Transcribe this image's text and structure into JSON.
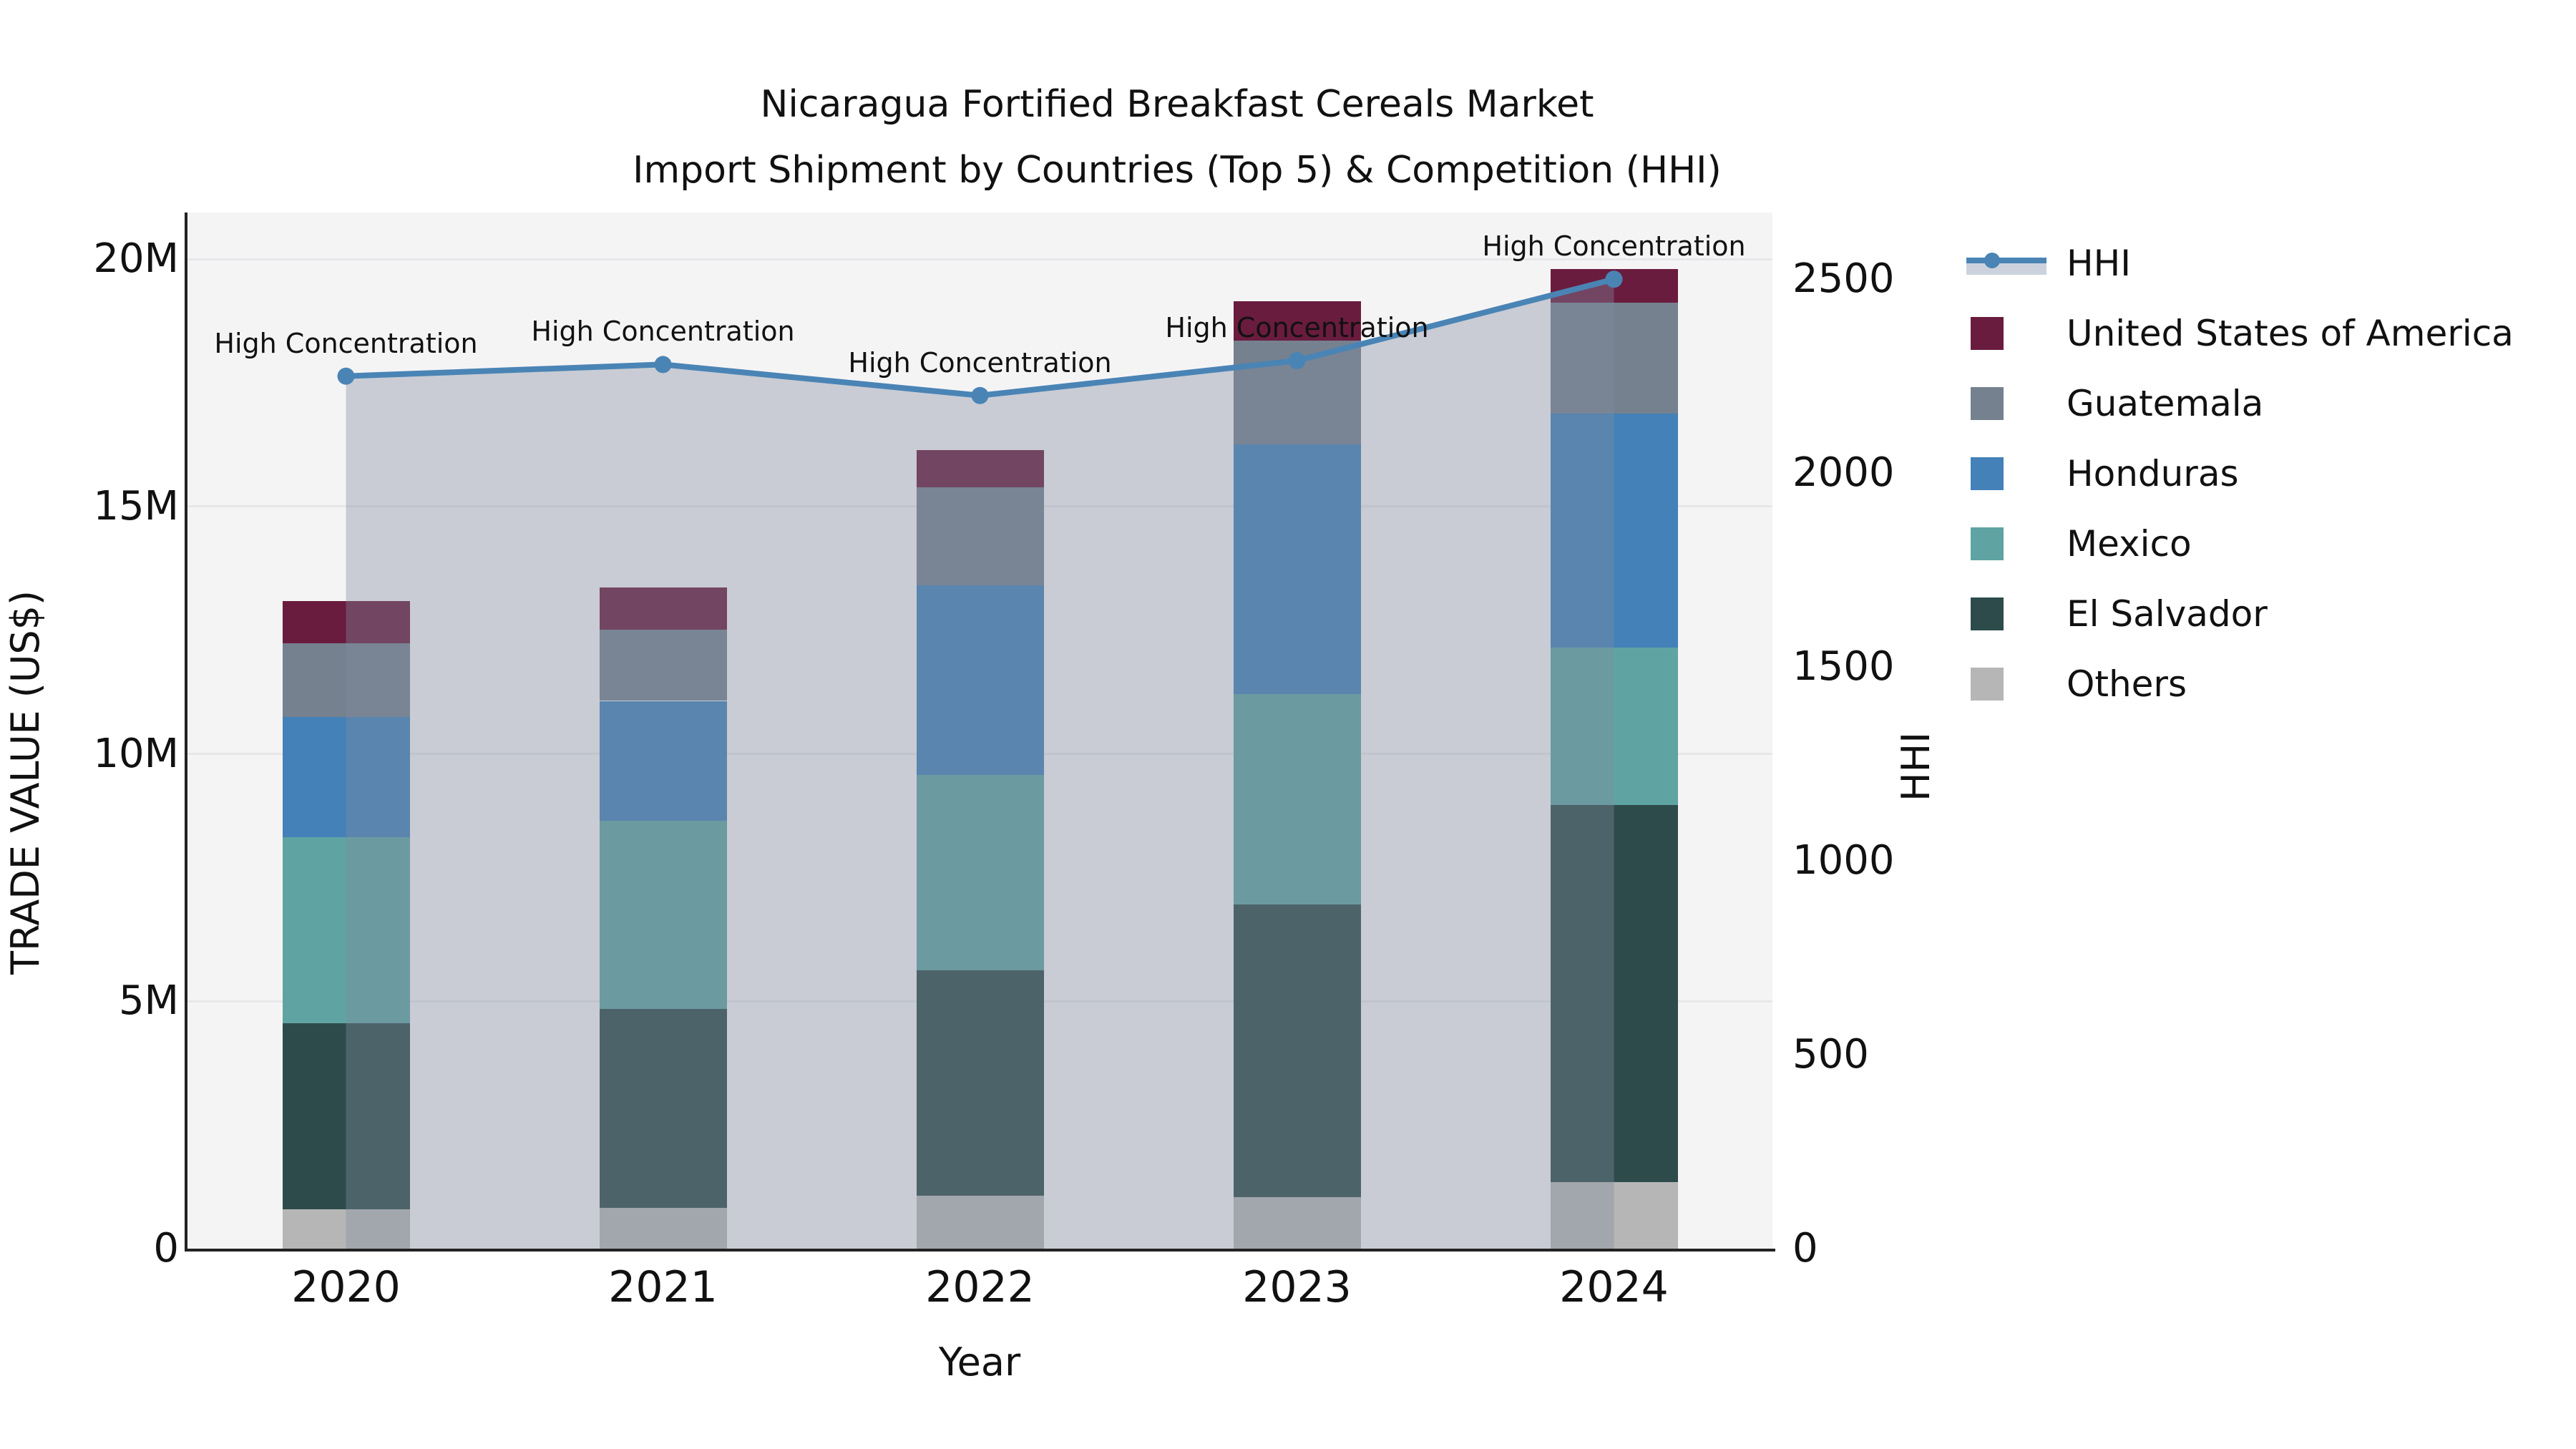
{
  "title": {
    "line1": "Nicaragua Fortified Breakfast Cereals Market",
    "line2": "Import Shipment by Countries (Top 5) & Competition (HHI)"
  },
  "axes": {
    "x": {
      "title": "Year",
      "categories": [
        "2020",
        "2021",
        "2022",
        "2023",
        "2024"
      ]
    },
    "y_left": {
      "title": "TRADE VALUE (US$)",
      "ticks": [
        {
          "label": "0",
          "value": 0
        },
        {
          "label": "5M",
          "value": 5
        },
        {
          "label": "10M",
          "value": 10
        },
        {
          "label": "15M",
          "value": 15
        },
        {
          "label": "20M",
          "value": 20
        }
      ]
    },
    "y_right": {
      "title": "HHI",
      "ticks": [
        {
          "label": "0",
          "value": 0
        },
        {
          "label": "500",
          "value": 500
        },
        {
          "label": "1000",
          "value": 1000
        },
        {
          "label": "1500",
          "value": 1500
        },
        {
          "label": "2000",
          "value": 2000
        },
        {
          "label": "2500",
          "value": 2500
        }
      ]
    }
  },
  "legend": {
    "items": [
      {
        "label": "HHI",
        "type": "line-area",
        "color": "#4a84b5"
      },
      {
        "label": "United States of America",
        "type": "patch",
        "color": "#6a1c3e"
      },
      {
        "label": "Guatemala",
        "type": "patch",
        "color": "#75818f"
      },
      {
        "label": "Honduras",
        "type": "patch",
        "color": "#4381b8"
      },
      {
        "label": "Mexico",
        "type": "patch",
        "color": "#5fa4a3"
      },
      {
        "label": "El Salvador",
        "type": "patch",
        "color": "#2e4b4b"
      },
      {
        "label": "Others",
        "type": "patch",
        "color": "#b6b6b6"
      }
    ]
  },
  "chart_data": {
    "type": "bar",
    "stacked": true,
    "title": "Nicaragua Fortified Breakfast Cereals Market Import Shipment by Countries (Top 5) & Competition (HHI)",
    "xlabel": "Year",
    "ylabel": "TRADE VALUE (US$)",
    "ylabel_right": "HHI",
    "unit": "USD millions",
    "categories": [
      "2020",
      "2021",
      "2022",
      "2023",
      "2024"
    ],
    "series": [
      {
        "name": "Others",
        "color": "#b6b6b6",
        "values": [
          0.79,
          0.82,
          1.07,
          1.04,
          1.35
        ]
      },
      {
        "name": "El Salvador",
        "color": "#2e4b4b",
        "values": [
          3.76,
          4.02,
          4.56,
          5.91,
          7.62
        ]
      },
      {
        "name": "Mexico",
        "color": "#5fa4a3",
        "values": [
          3.77,
          3.81,
          3.94,
          4.26,
          3.18
        ]
      },
      {
        "name": "Honduras",
        "color": "#4381b8",
        "values": [
          2.42,
          2.42,
          3.83,
          5.05,
          4.72
        ]
      },
      {
        "name": "Guatemala",
        "color": "#75818f",
        "values": [
          1.5,
          1.44,
          1.98,
          2.09,
          2.25
        ]
      },
      {
        "name": "United States of America",
        "color": "#6a1c3e",
        "values": [
          0.85,
          0.85,
          0.76,
          0.8,
          0.68
        ]
      }
    ],
    "line_series": {
      "name": "HHI",
      "axis": "right",
      "color": "#4a84b5",
      "area_fill": "rgba(130,140,158,0.38)",
      "values": [
        2250,
        2280,
        2200,
        2290,
        2500
      ],
      "point_annotations": [
        "High Concentration",
        "High Concentration",
        "High Concentration",
        "High Concentration",
        "High Concentration"
      ]
    },
    "ylim_left": [
      0,
      20.94
    ],
    "ylim_right": [
      0,
      2672
    ],
    "grid": "horizontal",
    "legend_position": "right"
  }
}
